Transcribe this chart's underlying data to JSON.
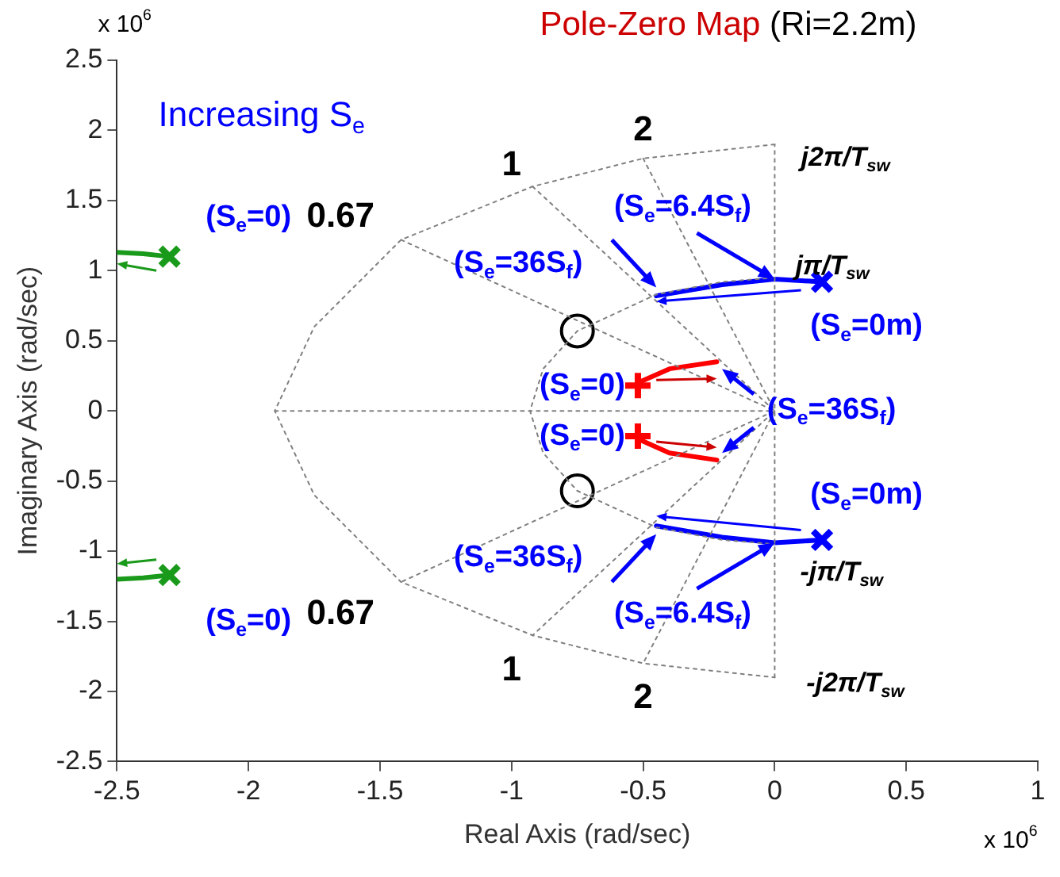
{
  "chart_data": {
    "type": "scatter",
    "title": "Pole-Zero Map",
    "subtitle": "(Ri=2.2m)",
    "xlabel": "Real Axis (rad/sec)",
    "ylabel": "Imaginary Axis (rad/sec)",
    "xlim": [
      -2.5,
      1
    ],
    "xticks": [
      -2.5,
      -2,
      -1.5,
      -1,
      -0.5,
      0,
      0.5,
      1
    ],
    "ylim": [
      -2.5,
      2.5
    ],
    "yticks": [
      -2.5,
      -2,
      -1.5,
      -1,
      -0.5,
      0,
      0.5,
      1,
      1.5,
      2,
      2.5
    ],
    "grid": false,
    "legend": false,
    "series": [
      {
        "type": "line",
        "color": "#808080",
        "line_style": "dotted",
        "x": [
          0,
          -0.5,
          -0.92,
          -1.42,
          -1.75,
          -1.9,
          -1.75,
          -1.42,
          -0.92,
          -0.5,
          0
        ],
        "values": [
          1.9,
          1.8,
          1.6,
          1.22,
          0.6,
          0,
          -0.6,
          -1.22,
          -1.6,
          -1.8,
          -1.9
        ]
      },
      {
        "type": "line",
        "color": "#808080",
        "line_style": "dotted",
        "x": [
          0,
          -0.2,
          -0.45,
          -0.75,
          -0.88,
          -0.93,
          -0.88,
          -0.75,
          -0.45,
          -0.2,
          0
        ],
        "values": [
          0.95,
          0.92,
          0.83,
          0.57,
          0.3,
          0,
          -0.3,
          -0.57,
          -0.83,
          -0.92,
          -0.95
        ]
      },
      {
        "type": "line",
        "color": "#808080",
        "line_style": "dotted",
        "x": [
          -1.42,
          0,
          -1.42
        ],
        "values": [
          1.22,
          0,
          -1.22
        ]
      },
      {
        "type": "line",
        "color": "#808080",
        "line_style": "dotted",
        "x": [
          -0.92,
          0,
          -0.92
        ],
        "values": [
          1.6,
          0,
          -1.6
        ]
      },
      {
        "type": "line",
        "color": "#808080",
        "line_style": "dotted",
        "x": [
          -0.5,
          0,
          -0.5
        ],
        "values": [
          1.8,
          0,
          -1.8
        ]
      },
      {
        "type": "line",
        "color": "#808080",
        "line_style": "dotted",
        "x": [
          -1.9,
          0
        ],
        "values": [
          0,
          0
        ]
      },
      {
        "type": "line",
        "color": "#808080",
        "line_style": "dotted",
        "x": [
          0,
          0
        ],
        "values": [
          -1.9,
          1.9
        ]
      },
      {
        "type": "line",
        "color": "#0000ff",
        "line_style": "solid",
        "x": [
          0.18,
          0,
          -0.2,
          -0.45
        ],
        "values": [
          0.92,
          0.94,
          0.9,
          0.82
        ]
      },
      {
        "type": "line",
        "color": "#0000ff",
        "line_style": "solid",
        "x": [
          0.18,
          0,
          -0.2,
          -0.45
        ],
        "values": [
          -0.92,
          -0.94,
          -0.9,
          -0.82
        ]
      },
      {
        "type": "line",
        "color": "#ff0000",
        "line_style": "solid",
        "x": [
          -0.52,
          -0.4,
          -0.22
        ],
        "values": [
          0.2,
          0.3,
          0.35
        ]
      },
      {
        "type": "line",
        "color": "#ff0000",
        "line_style": "solid",
        "x": [
          -0.52,
          -0.4,
          -0.22
        ],
        "values": [
          -0.2,
          -0.3,
          -0.35
        ]
      },
      {
        "type": "line",
        "color": "#1a9a1a",
        "line_style": "solid",
        "x": [
          -2.3,
          -2.4,
          -2.5
        ],
        "values": [
          1.1,
          1.12,
          1.13
        ]
      },
      {
        "type": "line",
        "color": "#1a9a1a",
        "line_style": "solid",
        "x": [
          -2.3,
          -2.4,
          -2.5
        ],
        "values": [
          -1.17,
          -1.19,
          -1.2
        ]
      },
      {
        "type": "scatter",
        "color": "#0000ff",
        "marker": "cross",
        "x": [
          0.18,
          0.18
        ],
        "values": [
          0.92,
          -0.92
        ]
      },
      {
        "type": "scatter",
        "color": "#1a9a1a",
        "marker": "cross",
        "x": [
          -2.3,
          -2.3
        ],
        "values": [
          1.1,
          -1.17
        ]
      },
      {
        "type": "scatter",
        "color": "#ff0000",
        "marker": "plus",
        "x": [
          -0.52,
          -0.52
        ],
        "values": [
          0.18,
          -0.18
        ]
      },
      {
        "type": "scatter",
        "color": "#000000",
        "marker": "circle",
        "x": [
          -0.75,
          -0.75
        ],
        "values": [
          0.57,
          -0.57
        ]
      }
    ],
    "annotations": [
      "x 10$^{6}$",
      "x 10$^{6}$",
      "Increasing S$_{e}$",
      "(S$_{e}$=0)",
      "(S$_{e}$=0)",
      "0.67",
      "0.67",
      "1",
      "1",
      "2",
      "2",
      "j2π/T$_{sw}$",
      {
        "text": "jπ/T$_{sw}$",
        "x": 0,
        "y": 0.95
      },
      {
        "text": "-jπ/T$_{sw}$",
        "x": 0,
        "y": -0.95
      },
      "-j2π/T$_{sw}$",
      {
        "text": "(S$_{e}$=6.4S$_{f}$)",
        "x": 0,
        "y": 0.94
      },
      {
        "text": "(S$_{e}$=6.4S$_{f}$)",
        "x": 0,
        "y": -0.94
      },
      {
        "text": "(S$_{e}$=36S$_{f}$)",
        "x": -0.45,
        "y": 0.88
      },
      {
        "text": "(S$_{e}$=36S$_{f}$)",
        "x": -0.45,
        "y": -0.88
      },
      {
        "text": "(S$_{e}$=0m)",
        "x": 0.18,
        "y": 0.92
      },
      {
        "text": "(S$_{e}$=0m)",
        "x": 0.18,
        "y": -0.92
      },
      {
        "text": "(S$_{e}$=0)",
        "x": -0.52,
        "y": 0.18
      },
      {
        "text": "(S$_{e}$=0)",
        "x": -0.52,
        "y": -0.18
      },
      {
        "text": "(S$_{e}$=36S$_{f}$)",
        "x": -0.2,
        "y": 0.3
      }
    ]
  }
}
